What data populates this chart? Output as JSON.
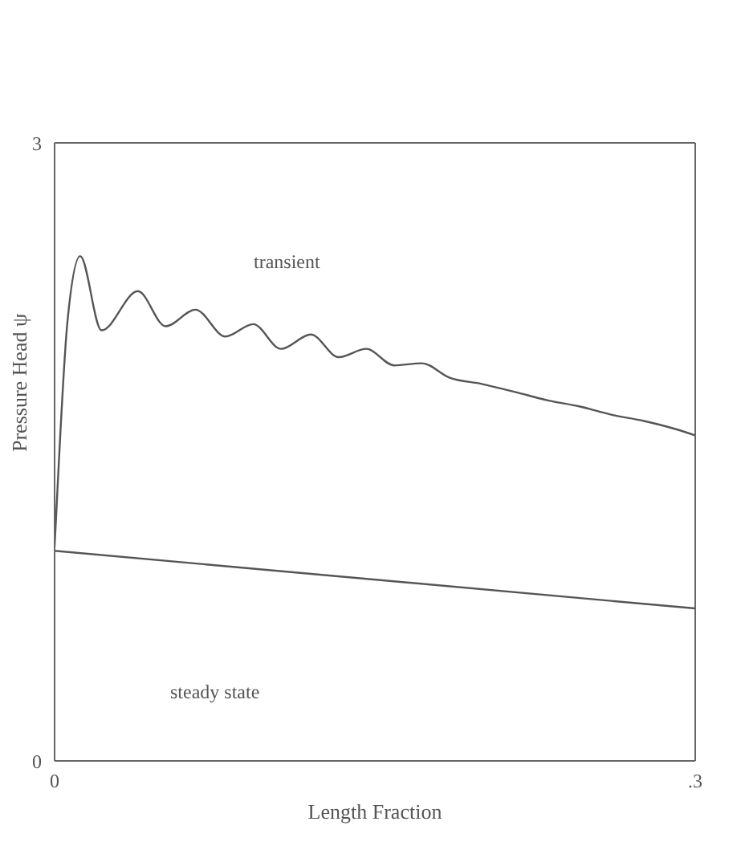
{
  "chart_data": {
    "type": "line",
    "xlabel": "Length Fraction",
    "ylabel": "Pressure Head ψ",
    "xlim": [
      0,
      0.3
    ],
    "xticks": [
      0,
      {
        "value": 0.3,
        "label": ".3"
      }
    ],
    "ylim": [
      0,
      3
    ],
    "yticks": [
      0,
      3
    ],
    "marker": "none",
    "line_style": "solid",
    "series": [
      {
        "color": "#555555",
        "x": [
          0,
          0.0015,
          0.006,
          0.012,
          0.022,
          0.039,
          0.052,
          0.066,
          0.08,
          0.093,
          0.106,
          0.12,
          0.133,
          0.146,
          0.159,
          0.172,
          0.185,
          0.2,
          0.216,
          0.231,
          0.246,
          0.261,
          0.276,
          0.291,
          0.3
        ],
        "values": [
          1.04,
          1.35,
          2.13,
          2.45,
          2.09,
          2.28,
          2.11,
          2.19,
          2.06,
          2.12,
          2.0,
          2.07,
          1.96,
          2.0,
          1.92,
          1.93,
          1.86,
          1.83,
          1.79,
          1.75,
          1.72,
          1.68,
          1.65,
          1.61,
          1.58
        ]
      },
      {
        "color": "#555555",
        "x": [
          0,
          0.3
        ],
        "values": [
          1.02,
          0.74
        ]
      }
    ],
    "annotations": [
      "transient",
      "steady state"
    ]
  }
}
